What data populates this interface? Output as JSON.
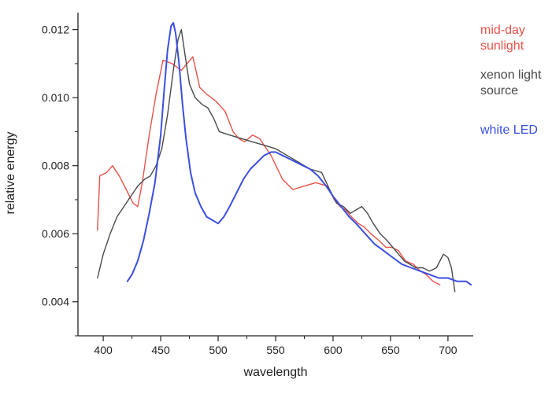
{
  "chart_data": {
    "type": "line",
    "xlabel": "wavelength",
    "ylabel": "relative energy",
    "xlim": [
      378,
      722
    ],
    "ylim": [
      0.003,
      0.0125
    ],
    "xticks": [
      400,
      450,
      500,
      550,
      600,
      650,
      700
    ],
    "xtick_labels": [
      "400",
      "450",
      "500",
      "550",
      "600",
      "650",
      "700"
    ],
    "yticks": [
      0.004,
      0.006,
      0.008,
      0.01,
      0.012
    ],
    "ytick_labels": [
      "0.004",
      "0.006",
      "0.008",
      "0.010",
      "0.012"
    ],
    "grid": false,
    "legend": "right side, text-only colored labels",
    "series": [
      {
        "name": "mid-day sunlight",
        "color": "#e8524a",
        "legend_lines": [
          "mid-day",
          "sunlight"
        ],
        "x": [
          395,
          397,
          403,
          408,
          414,
          420,
          426,
          430,
          434,
          440,
          446,
          452,
          460,
          468,
          478,
          484,
          490,
          498,
          506,
          513,
          518,
          523,
          530,
          536,
          546,
          556,
          565,
          575,
          585,
          595,
          601,
          606,
          611,
          616,
          622,
          627,
          633,
          640,
          646,
          651,
          657,
          663,
          670,
          676,
          681,
          687,
          693
        ],
        "y": [
          0.0061,
          0.0077,
          0.0078,
          0.008,
          0.0077,
          0.0073,
          0.0069,
          0.0068,
          0.0075,
          0.0089,
          0.0101,
          0.0111,
          0.011,
          0.0108,
          0.0112,
          0.0103,
          0.0101,
          0.0099,
          0.0096,
          0.009,
          0.0088,
          0.0087,
          0.0089,
          0.0088,
          0.0083,
          0.0076,
          0.0073,
          0.0074,
          0.0075,
          0.0074,
          0.007,
          0.0068,
          0.0067,
          0.0065,
          0.0063,
          0.0062,
          0.006,
          0.0058,
          0.0056,
          0.0056,
          0.0055,
          0.0052,
          0.0051,
          0.0049,
          0.0048,
          0.0046,
          0.0045
        ]
      },
      {
        "name": "xenon light source",
        "color": "#4a4a4a",
        "legend_lines": [
          "xenon light",
          "source"
        ],
        "x": [
          395,
          400,
          406,
          412,
          418,
          424,
          430,
          436,
          441,
          446,
          451,
          456,
          461,
          465,
          468,
          471,
          475,
          480,
          486,
          491,
          496,
          501,
          510,
          520,
          530,
          540,
          550,
          560,
          570,
          580,
          590,
          597,
          603,
          609,
          615,
          620,
          625,
          630,
          635,
          641,
          647,
          652,
          657,
          662,
          667,
          672,
          678,
          684,
          690,
          696,
          700,
          703,
          706
        ],
        "y": [
          0.0047,
          0.0054,
          0.006,
          0.0065,
          0.0068,
          0.0071,
          0.0074,
          0.0076,
          0.0077,
          0.008,
          0.0085,
          0.0095,
          0.0108,
          0.0117,
          0.012,
          0.0113,
          0.0104,
          0.01,
          0.0098,
          0.0097,
          0.0094,
          0.009,
          0.0089,
          0.0088,
          0.0087,
          0.0086,
          0.0085,
          0.0083,
          0.0081,
          0.0079,
          0.0078,
          0.0073,
          0.0069,
          0.0068,
          0.0066,
          0.0067,
          0.0068,
          0.0066,
          0.0063,
          0.006,
          0.0058,
          0.0056,
          0.0054,
          0.0052,
          0.0051,
          0.005,
          0.005,
          0.0049,
          0.005,
          0.0054,
          0.0053,
          0.005,
          0.0043
        ]
      },
      {
        "name": "white LED",
        "color": "#3b4fe0",
        "legend_lines": [
          "white LED"
        ],
        "x": [
          421,
          425,
          430,
          435,
          440,
          445,
          450,
          453,
          456,
          459,
          461,
          463,
          466,
          469,
          472,
          476,
          480,
          485,
          490,
          495,
          500,
          505,
          510,
          516,
          522,
          528,
          534,
          540,
          546,
          550,
          556,
          562,
          568,
          574,
          580,
          587,
          594,
          600,
          607,
          614,
          620,
          628,
          636,
          644,
          652,
          660,
          668,
          676,
          684,
          692,
          700,
          708,
          716,
          720
        ],
        "y": [
          0.0046,
          0.0048,
          0.0052,
          0.0058,
          0.0066,
          0.0075,
          0.0089,
          0.0102,
          0.0114,
          0.0121,
          0.0122,
          0.0119,
          0.011,
          0.0098,
          0.0088,
          0.0078,
          0.0072,
          0.0068,
          0.0065,
          0.0064,
          0.0063,
          0.0065,
          0.0068,
          0.0072,
          0.0076,
          0.0079,
          0.0081,
          0.0083,
          0.0084,
          0.0084,
          0.0083,
          0.0082,
          0.0081,
          0.008,
          0.0079,
          0.0077,
          0.0074,
          0.0071,
          0.0068,
          0.0065,
          0.0063,
          0.006,
          0.0057,
          0.0055,
          0.0053,
          0.0051,
          0.005,
          0.0049,
          0.0048,
          0.0047,
          0.0047,
          0.0046,
          0.0046,
          0.0045
        ]
      }
    ]
  }
}
